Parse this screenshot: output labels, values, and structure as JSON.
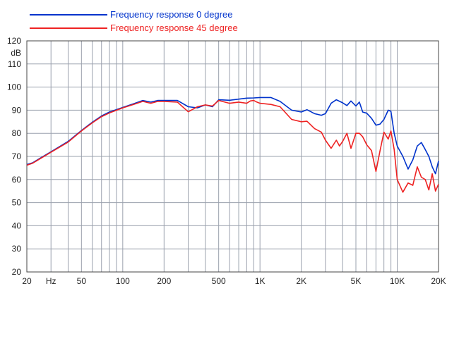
{
  "chart_data": {
    "type": "line",
    "x_scale": "log",
    "xlim": [
      20,
      20000
    ],
    "ylim": [
      20,
      120
    ],
    "y_unit": "dB",
    "x_unit": "Hz",
    "grid": true,
    "legend_placement": "top-left",
    "x_tick_labels": [
      {
        "value": 20,
        "label": "20"
      },
      {
        "value": 30,
        "label": "Hz"
      },
      {
        "value": 50,
        "label": "50"
      },
      {
        "value": 100,
        "label": "100"
      },
      {
        "value": 200,
        "label": "200"
      },
      {
        "value": 500,
        "label": "500"
      },
      {
        "value": 1000,
        "label": "1K"
      },
      {
        "value": 2000,
        "label": "2K"
      },
      {
        "value": 5000,
        "label": "5K"
      },
      {
        "value": 10000,
        "label": "10K"
      },
      {
        "value": 20000,
        "label": "20K"
      }
    ],
    "y_ticks": [
      20,
      30,
      40,
      50,
      60,
      70,
      80,
      90,
      100,
      110,
      120
    ],
    "series": [
      {
        "name": "Frequency response 0 degree",
        "color": "#0033cc",
        "x": [
          20,
          22,
          25,
          30,
          40,
          50,
          60,
          70,
          80,
          100,
          120,
          140,
          160,
          180,
          200,
          250,
          300,
          350,
          400,
          450,
          500,
          600,
          700,
          800,
          900,
          1000,
          1200,
          1400,
          1700,
          2000,
          2200,
          2500,
          2800,
          3000,
          3300,
          3600,
          4000,
          4300,
          4600,
          5000,
          5300,
          5600,
          6000,
          6500,
          7000,
          7500,
          8000,
          8600,
          9000,
          9500,
          10000,
          11000,
          12000,
          13000,
          14000,
          15000,
          16000,
          17000,
          18000,
          19000,
          20000
        ],
        "y": [
          66.5,
          67.2,
          69.2,
          72.0,
          76.5,
          81.2,
          84.8,
          87.5,
          89.2,
          91.2,
          92.8,
          94.2,
          93.5,
          94.2,
          94.2,
          94.2,
          91.5,
          91.0,
          92.3,
          91.5,
          94.5,
          94.3,
          94.8,
          95.2,
          95.3,
          95.5,
          95.5,
          93.8,
          90.0,
          89.2,
          90.2,
          88.5,
          87.8,
          88.5,
          93.0,
          94.5,
          93.2,
          92.0,
          94.0,
          91.8,
          93.5,
          89.2,
          88.7,
          86.5,
          83.5,
          84.0,
          86.0,
          90.0,
          89.5,
          80.0,
          74.5,
          70.0,
          64.5,
          68.5,
          74.5,
          76.0,
          73.0,
          70.0,
          65.5,
          62.5,
          68.0
        ]
      },
      {
        "name": "Frequency response 45 degree",
        "color": "#ee2222",
        "x": [
          20,
          22,
          25,
          30,
          40,
          50,
          60,
          70,
          80,
          100,
          120,
          140,
          160,
          180,
          200,
          250,
          300,
          350,
          400,
          450,
          500,
          600,
          700,
          800,
          850,
          900,
          950,
          1000,
          1200,
          1400,
          1700,
          2000,
          2200,
          2500,
          2800,
          3000,
          3300,
          3600,
          3800,
          4000,
          4300,
          4600,
          5000,
          5300,
          5600,
          6000,
          6500,
          7000,
          7500,
          8000,
          8600,
          9000,
          9500,
          10000,
          11000,
          12000,
          13000,
          14000,
          15000,
          16000,
          17000,
          18000,
          19000,
          20000
        ],
        "y": [
          66.2,
          67.0,
          69.0,
          71.8,
          76.2,
          81.0,
          84.5,
          87.2,
          88.8,
          91.0,
          92.5,
          93.8,
          93.0,
          93.8,
          93.8,
          93.5,
          89.3,
          91.5,
          92.3,
          91.8,
          94.2,
          93.0,
          93.5,
          93.0,
          94.0,
          94.2,
          93.5,
          93.0,
          92.5,
          91.5,
          86.0,
          85.0,
          85.2,
          82.0,
          80.5,
          77.0,
          73.5,
          77.0,
          74.5,
          76.5,
          80.0,
          73.5,
          80.0,
          80.0,
          78.5,
          75.0,
          72.5,
          63.5,
          72.5,
          80.5,
          77.5,
          81.0,
          73.0,
          60.0,
          54.5,
          58.5,
          57.5,
          65.5,
          61.0,
          60.0,
          55.5,
          62.5,
          55.0,
          58.0
        ]
      }
    ]
  }
}
